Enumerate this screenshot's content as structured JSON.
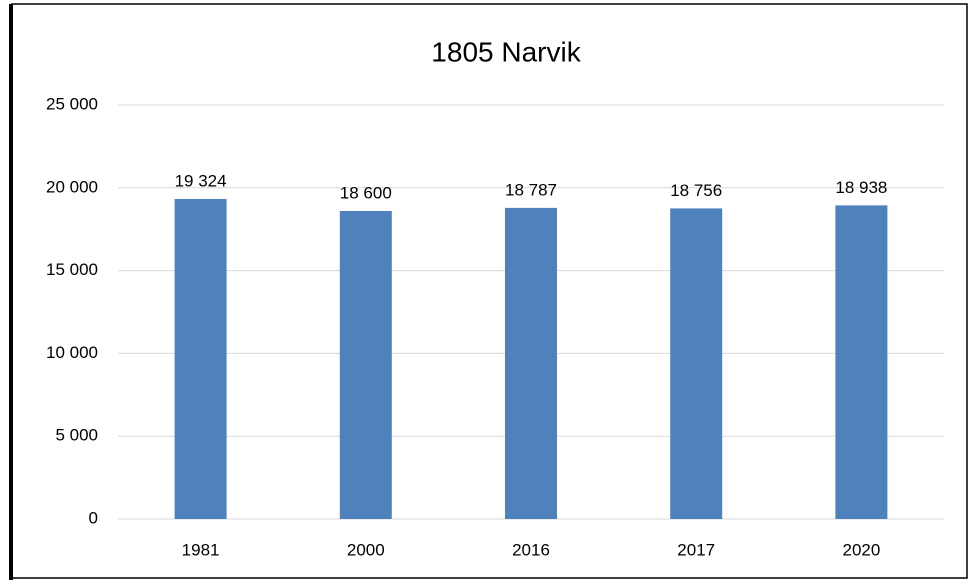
{
  "chart_data": {
    "type": "bar",
    "title": "1805 Narvik",
    "categories": [
      "1981",
      "2000",
      "2016",
      "2017",
      "2020"
    ],
    "values": [
      19324,
      18600,
      18787,
      18756,
      18938
    ],
    "value_labels": [
      "19 324",
      "18 600",
      "18 787",
      "18 756",
      "18 938"
    ],
    "color": "#4f81bd",
    "ylim": [
      0,
      25000
    ],
    "yticks": [
      {
        "value": 0,
        "label": "0"
      },
      {
        "value": 5000,
        "label": "5 000"
      },
      {
        "value": 10000,
        "label": "10 000"
      },
      {
        "value": 15000,
        "label": "15 000"
      },
      {
        "value": 20000,
        "label": "20 000"
      },
      {
        "value": 25000,
        "label": "25 000"
      }
    ],
    "grid": true
  }
}
